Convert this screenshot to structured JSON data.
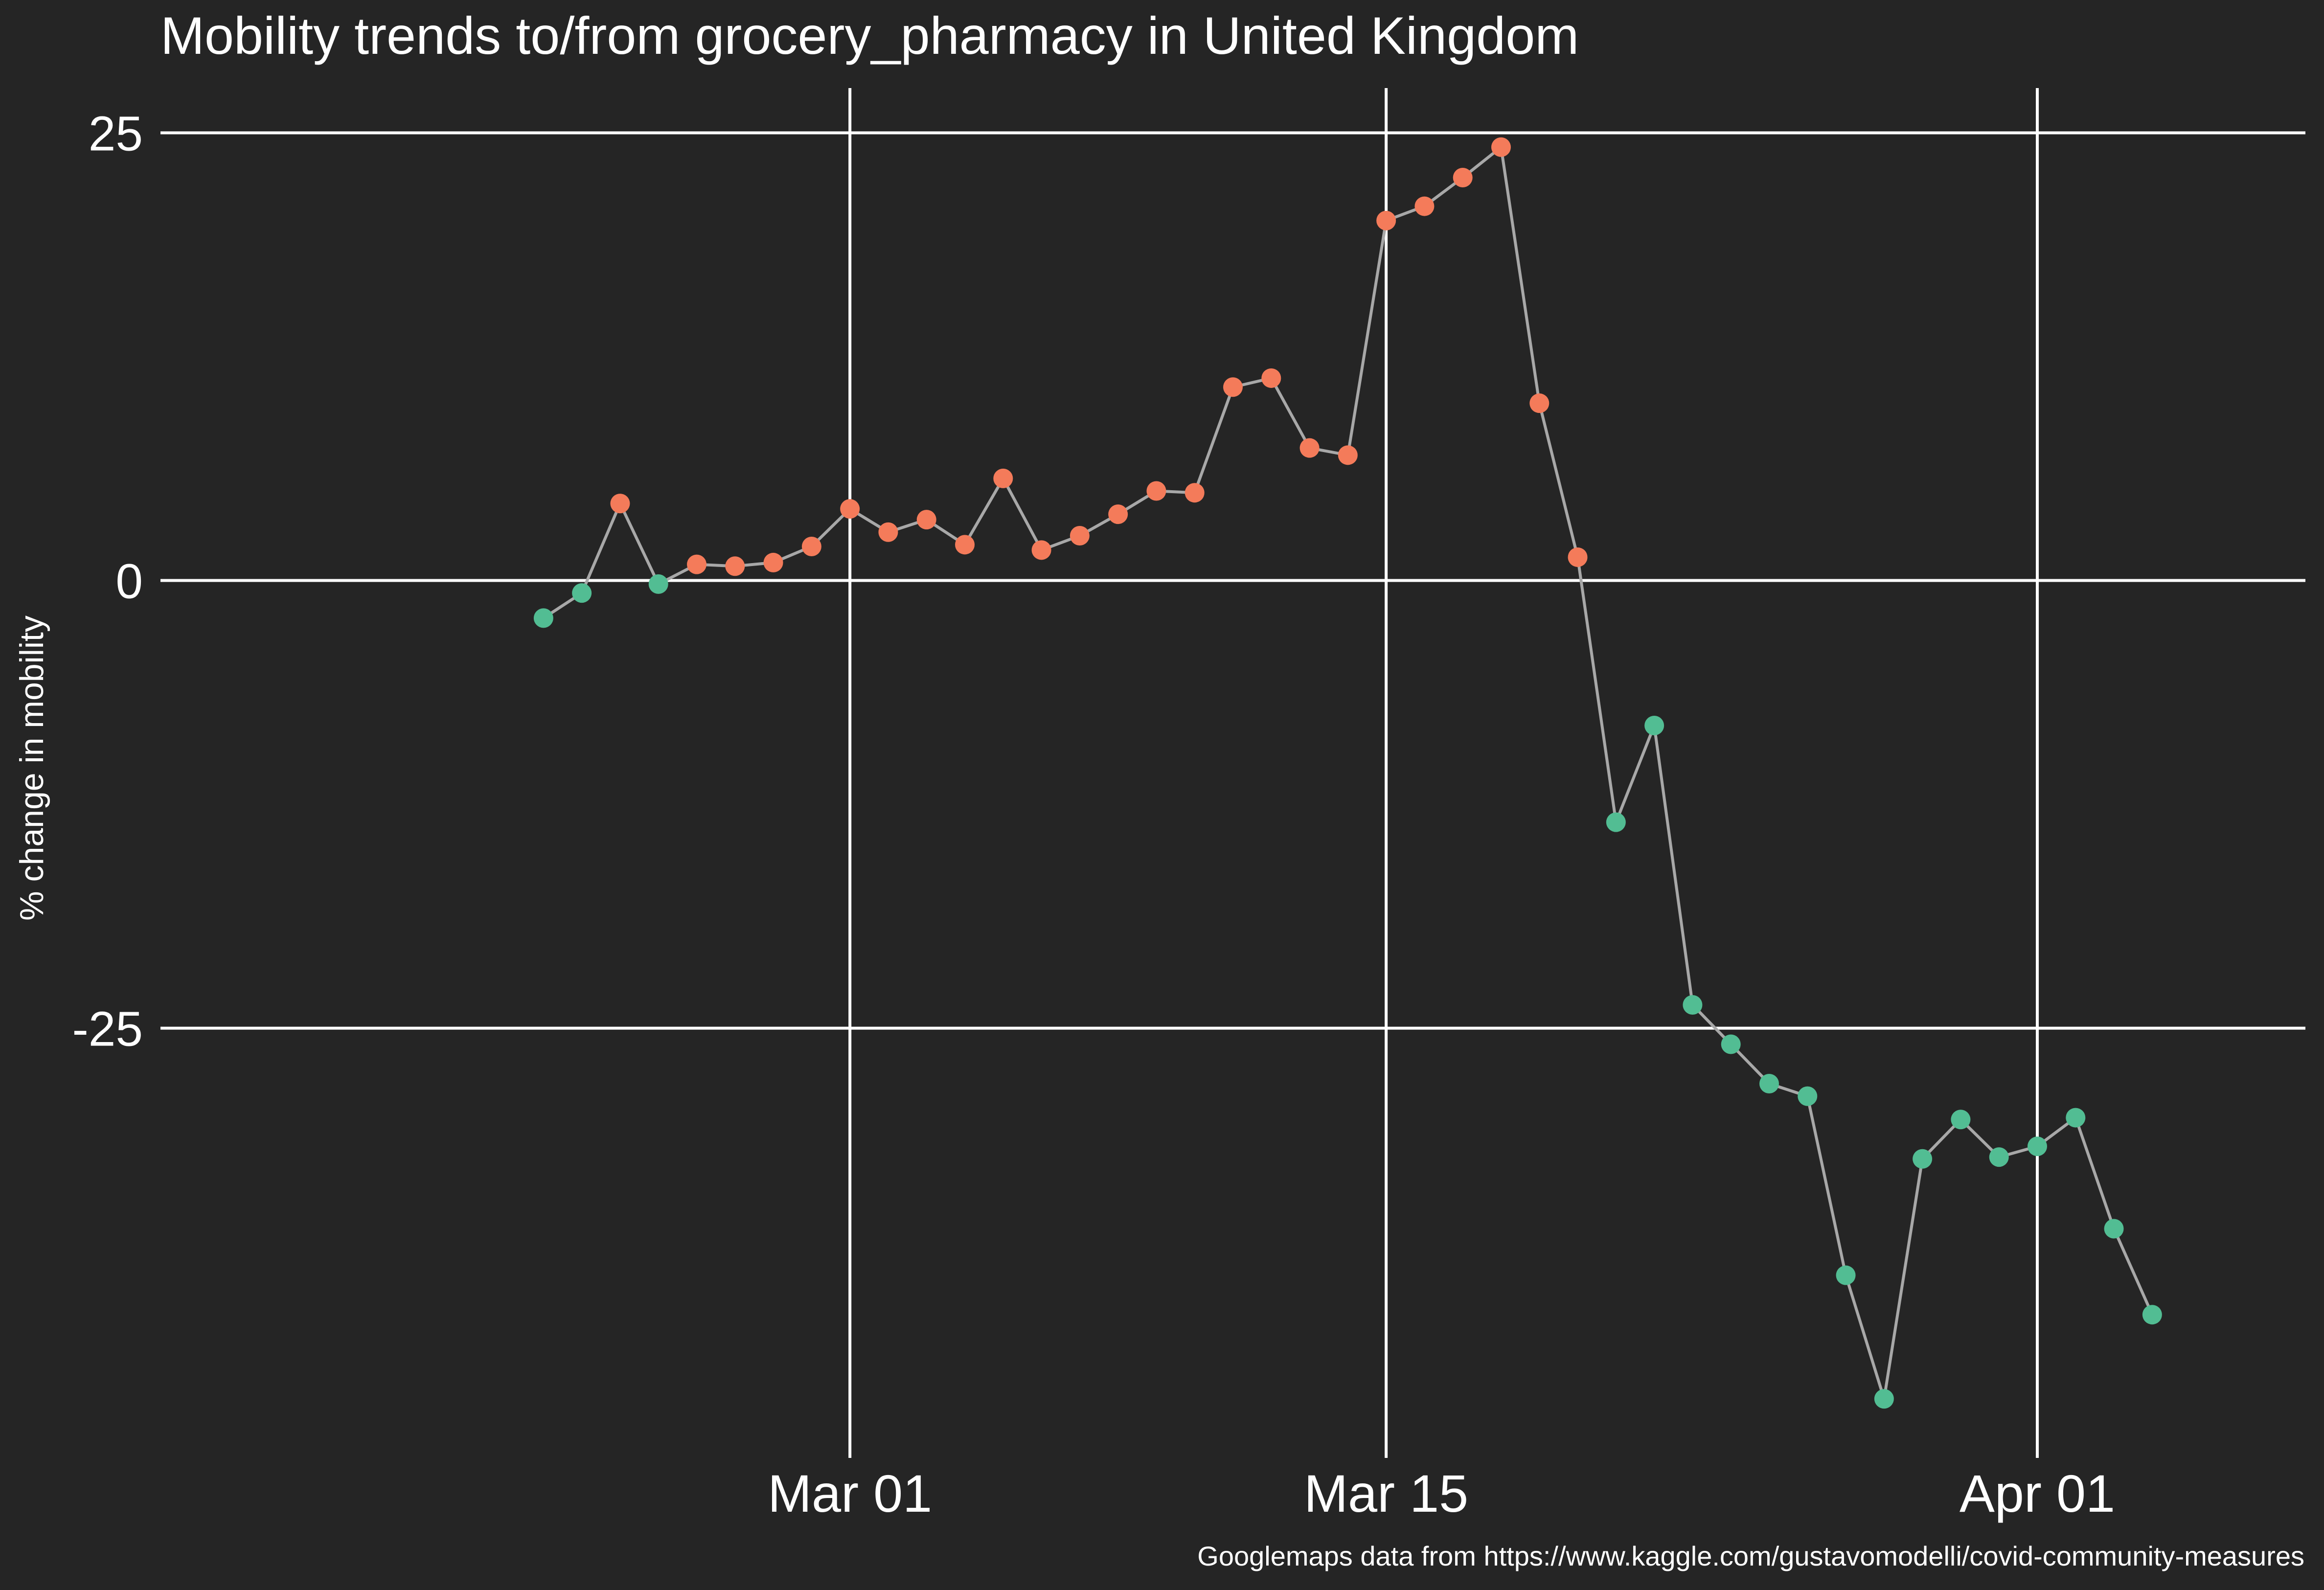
{
  "chart_data": {
    "type": "scatter",
    "title": "Mobility trends to/from grocery_pharmacy in United Kingdom",
    "xlabel": "",
    "ylabel": "% change in mobility",
    "caption": "Googlemaps data from https://www.kaggle.com/gustavomodelli/covid-community-measures",
    "x_type": "date",
    "xlim": [
      "2020-02-12",
      "2020-04-08"
    ],
    "ylim": [
      -49,
      27.5
    ],
    "x_ticks": [
      {
        "value": "2020-03-01",
        "label": "Mar 01"
      },
      {
        "value": "2020-03-15",
        "label": "Mar 15"
      },
      {
        "value": "2020-04-01",
        "label": "Apr 01"
      }
    ],
    "y_ticks": [
      {
        "value": 25,
        "label": "25"
      },
      {
        "value": 0,
        "label": "0"
      },
      {
        "value": -25,
        "label": "-25"
      }
    ],
    "grid": true,
    "legend": "none",
    "colors": {
      "background": "#252525",
      "grid": "#ffffff",
      "line": "#a8a8a8",
      "positive": "#f47b5a",
      "negative": "#52bd93",
      "text": "#ffffff"
    },
    "points": [
      {
        "x": "2020-02-22",
        "y": -2.1
      },
      {
        "x": "2020-02-23",
        "y": -0.7
      },
      {
        "x": "2020-02-24",
        "y": 4.3
      },
      {
        "x": "2020-02-25",
        "y": -0.2
      },
      {
        "x": "2020-02-26",
        "y": 0.9
      },
      {
        "x": "2020-02-27",
        "y": 0.8
      },
      {
        "x": "2020-02-28",
        "y": 1.0
      },
      {
        "x": "2020-02-29",
        "y": 1.9
      },
      {
        "x": "2020-03-01",
        "y": 4.0
      },
      {
        "x": "2020-03-02",
        "y": 2.7
      },
      {
        "x": "2020-03-03",
        "y": 3.4
      },
      {
        "x": "2020-03-04",
        "y": 2.0
      },
      {
        "x": "2020-03-05",
        "y": 5.7
      },
      {
        "x": "2020-03-06",
        "y": 1.7
      },
      {
        "x": "2020-03-07",
        "y": 2.5
      },
      {
        "x": "2020-03-08",
        "y": 3.7
      },
      {
        "x": "2020-03-09",
        "y": 5.0
      },
      {
        "x": "2020-03-10",
        "y": 4.9
      },
      {
        "x": "2020-03-11",
        "y": 10.8
      },
      {
        "x": "2020-03-12",
        "y": 11.3
      },
      {
        "x": "2020-03-13",
        "y": 7.4
      },
      {
        "x": "2020-03-14",
        "y": 7.0
      },
      {
        "x": "2020-03-15",
        "y": 20.1
      },
      {
        "x": "2020-03-16",
        "y": 20.9
      },
      {
        "x": "2020-03-17",
        "y": 22.5
      },
      {
        "x": "2020-03-18",
        "y": 24.2
      },
      {
        "x": "2020-03-19",
        "y": 9.9
      },
      {
        "x": "2020-03-20",
        "y": 1.3
      },
      {
        "x": "2020-03-21",
        "y": -13.5
      },
      {
        "x": "2020-03-22",
        "y": -8.1
      },
      {
        "x": "2020-03-23",
        "y": -23.7
      },
      {
        "x": "2020-03-24",
        "y": -25.9
      },
      {
        "x": "2020-03-25",
        "y": -28.1
      },
      {
        "x": "2020-03-26",
        "y": -28.8
      },
      {
        "x": "2020-03-27",
        "y": -38.8
      },
      {
        "x": "2020-03-28",
        "y": -45.7
      },
      {
        "x": "2020-03-29",
        "y": -32.3
      },
      {
        "x": "2020-03-30",
        "y": -30.1
      },
      {
        "x": "2020-03-31",
        "y": -32.2
      },
      {
        "x": "2020-04-01",
        "y": -31.6
      },
      {
        "x": "2020-04-02",
        "y": -30.0
      },
      {
        "x": "2020-04-03",
        "y": -36.2
      },
      {
        "x": "2020-04-04",
        "y": -41.0
      }
    ]
  }
}
